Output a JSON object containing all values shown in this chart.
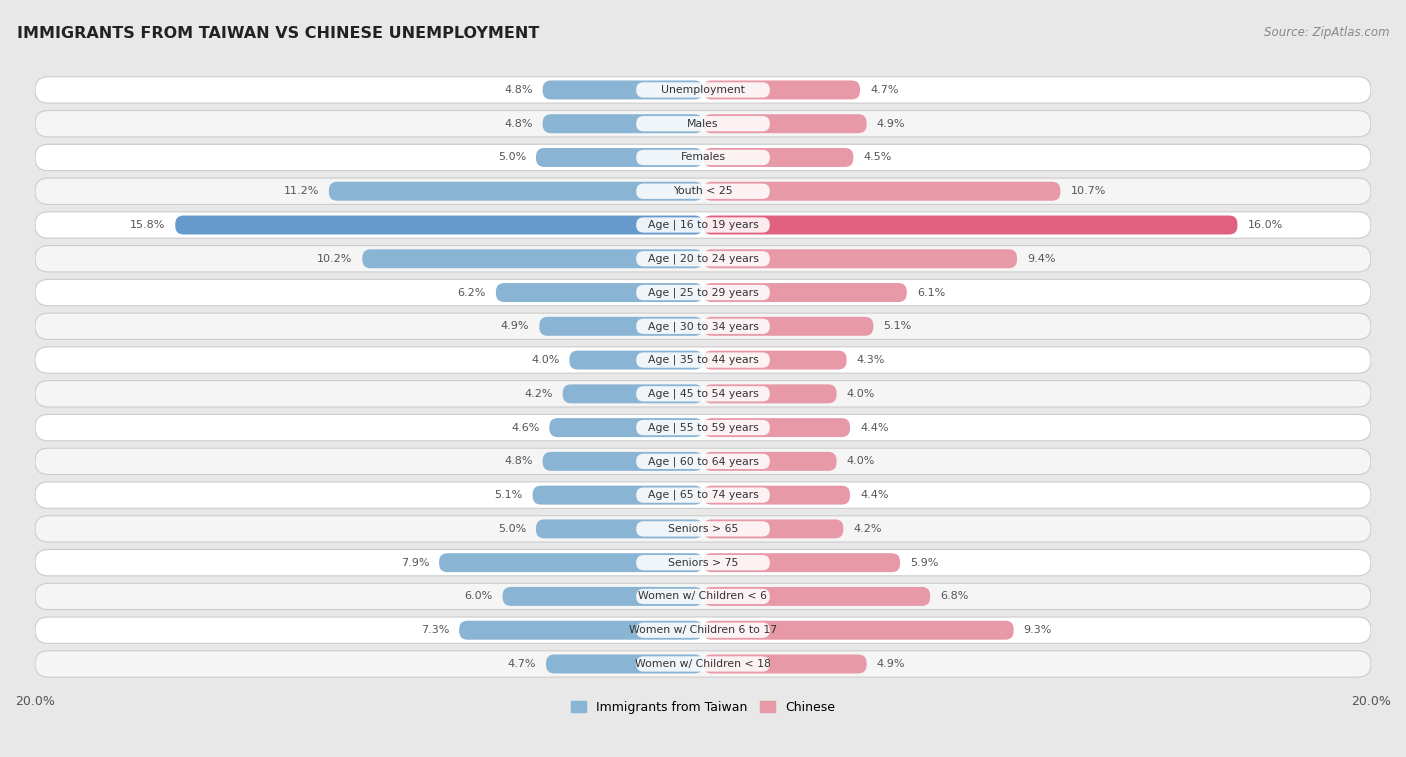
{
  "title": "IMMIGRANTS FROM TAIWAN VS CHINESE UNEMPLOYMENT",
  "source": "Source: ZipAtlas.com",
  "categories": [
    "Unemployment",
    "Males",
    "Females",
    "Youth < 25",
    "Age | 16 to 19 years",
    "Age | 20 to 24 years",
    "Age | 25 to 29 years",
    "Age | 30 to 34 years",
    "Age | 35 to 44 years",
    "Age | 45 to 54 years",
    "Age | 55 to 59 years",
    "Age | 60 to 64 years",
    "Age | 65 to 74 years",
    "Seniors > 65",
    "Seniors > 75",
    "Women w/ Children < 6",
    "Women w/ Children 6 to 17",
    "Women w/ Children < 18"
  ],
  "taiwan_values": [
    4.8,
    4.8,
    5.0,
    11.2,
    15.8,
    10.2,
    6.2,
    4.9,
    4.0,
    4.2,
    4.6,
    4.8,
    5.1,
    5.0,
    7.9,
    6.0,
    7.3,
    4.7
  ],
  "chinese_values": [
    4.7,
    4.9,
    4.5,
    10.7,
    16.0,
    9.4,
    6.1,
    5.1,
    4.3,
    4.0,
    4.4,
    4.0,
    4.4,
    4.2,
    5.9,
    6.8,
    9.3,
    4.9
  ],
  "taiwan_color": "#8ab4d4",
  "chinese_color": "#e899a8",
  "taiwan_highlight_color": "#6699cc",
  "chinese_highlight_color": "#e06080",
  "row_bg_odd": "#f5f5f5",
  "row_bg_even": "#ffffff",
  "background_color": "#e8e8e8",
  "axis_max": 20.0,
  "label_box_color": "#ffffff",
  "legend_taiwan": "Immigrants from Taiwan",
  "legend_chinese": "Chinese",
  "value_color": "#555555",
  "label_color": "#333333"
}
